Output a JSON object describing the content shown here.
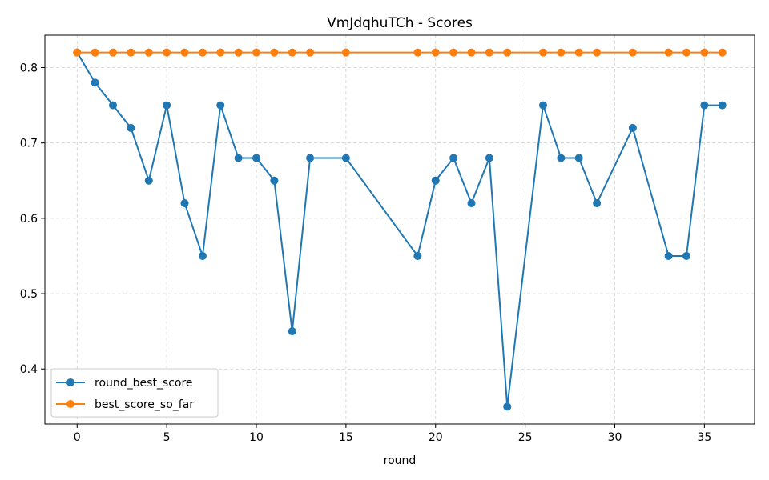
{
  "chart_data": {
    "type": "line",
    "title": "VmJdqhuTCh - Scores",
    "xlabel": "round",
    "ylabel": "",
    "xlim": [
      -1.8,
      37.8
    ],
    "ylim": [
      0.327,
      0.843
    ],
    "xticks": [
      0,
      5,
      10,
      15,
      20,
      25,
      30,
      35
    ],
    "yticks": [
      0.4,
      0.5,
      0.6,
      0.7,
      0.8
    ],
    "grid": true,
    "legend_position": "lower-left",
    "series": [
      {
        "name": "round_best_score",
        "color": "#1f77b4",
        "x": [
          0,
          1,
          2,
          3,
          4,
          5,
          6,
          7,
          8,
          9,
          10,
          11,
          12,
          13,
          15,
          19,
          20,
          21,
          22,
          23,
          24,
          26,
          27,
          28,
          29,
          31,
          33,
          34,
          35,
          36
        ],
        "y": [
          0.82,
          0.78,
          0.75,
          0.72,
          0.65,
          0.75,
          0.62,
          0.55,
          0.75,
          0.68,
          0.68,
          0.65,
          0.45,
          0.68,
          0.68,
          0.55,
          0.65,
          0.68,
          0.62,
          0.68,
          0.35,
          0.75,
          0.68,
          0.68,
          0.62,
          0.72,
          0.55,
          0.55,
          0.75,
          0.75
        ]
      },
      {
        "name": "best_score_so_far",
        "color": "#ff7f0e",
        "x": [
          0,
          1,
          2,
          3,
          4,
          5,
          6,
          7,
          8,
          9,
          10,
          11,
          12,
          13,
          15,
          19,
          20,
          21,
          22,
          23,
          24,
          26,
          27,
          28,
          29,
          31,
          33,
          34,
          35,
          36
        ],
        "y": [
          0.82,
          0.82,
          0.82,
          0.82,
          0.82,
          0.82,
          0.82,
          0.82,
          0.82,
          0.82,
          0.82,
          0.82,
          0.82,
          0.82,
          0.82,
          0.82,
          0.82,
          0.82,
          0.82,
          0.82,
          0.82,
          0.82,
          0.82,
          0.82,
          0.82,
          0.82,
          0.82,
          0.82,
          0.82,
          0.82
        ]
      }
    ]
  }
}
